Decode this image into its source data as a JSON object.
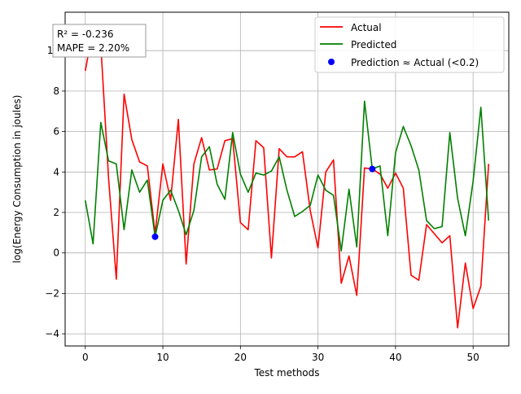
{
  "chart_data": {
    "type": "line",
    "xlabel": "Test methods",
    "ylabel": "log(Energy Consumption in joules)",
    "xlim": [
      -2.6,
      54.6
    ],
    "ylim": [
      -4.6,
      11.9
    ],
    "x_ticks": [
      0,
      10,
      20,
      30,
      40,
      50
    ],
    "y_ticks": [
      -4,
      -2,
      0,
      2,
      4,
      6,
      8,
      10
    ],
    "grid": true,
    "legend_position": "top-right",
    "annotation": {
      "line1": "R² = -0.236",
      "line2": "MAPE = 2.20%",
      "position": "top-left"
    },
    "series": [
      {
        "name": "Actual",
        "color": "#ff0000",
        "kind": "line",
        "x": [
          0,
          1,
          2,
          3,
          4,
          5,
          6,
          7,
          8,
          9,
          10,
          11,
          12,
          13,
          14,
          15,
          16,
          17,
          18,
          19,
          20,
          21,
          22,
          23,
          24,
          25,
          26,
          27,
          28,
          29,
          30,
          31,
          32,
          33,
          34,
          35,
          36,
          37,
          38,
          39,
          40,
          41,
          42,
          43,
          44,
          45,
          46,
          47,
          48,
          49,
          50,
          51,
          52
        ],
        "y": [
          9.0,
          11.1,
          10.3,
          3.7,
          -1.3,
          7.85,
          5.6,
          4.5,
          4.3,
          0.95,
          4.4,
          2.6,
          6.6,
          -0.55,
          4.4,
          5.7,
          4.1,
          4.15,
          5.55,
          5.65,
          1.5,
          1.15,
          5.55,
          5.2,
          -0.25,
          5.15,
          4.75,
          4.75,
          5.0,
          2.1,
          0.25,
          4.0,
          4.6,
          -1.5,
          -0.15,
          -2.1,
          4.2,
          4.15,
          3.9,
          3.2,
          3.95,
          3.2,
          -1.1,
          -1.35,
          1.4,
          0.95,
          0.5,
          0.85,
          -3.7,
          -0.5,
          -2.75,
          -1.65,
          4.4
        ]
      },
      {
        "name": "Predicted",
        "color": "#008000",
        "kind": "line",
        "x": [
          0,
          1,
          2,
          3,
          4,
          5,
          6,
          7,
          8,
          9,
          10,
          11,
          12,
          13,
          14,
          15,
          16,
          17,
          18,
          19,
          20,
          21,
          22,
          23,
          24,
          25,
          26,
          27,
          28,
          29,
          30,
          31,
          32,
          33,
          34,
          35,
          36,
          37,
          38,
          39,
          40,
          41,
          42,
          43,
          44,
          45,
          46,
          47,
          48,
          49,
          50,
          51,
          52
        ],
        "y": [
          2.6,
          0.45,
          6.45,
          4.55,
          4.4,
          1.15,
          4.1,
          3.0,
          3.6,
          0.8,
          2.6,
          3.1,
          2.1,
          0.9,
          2.1,
          4.75,
          5.25,
          3.4,
          2.65,
          5.95,
          3.9,
          3.0,
          3.95,
          3.85,
          4.05,
          4.75,
          3.1,
          1.8,
          2.05,
          2.35,
          3.85,
          3.1,
          2.85,
          0.1,
          3.15,
          0.3,
          7.5,
          4.15,
          4.3,
          0.85,
          4.95,
          6.25,
          5.3,
          4.1,
          1.6,
          1.2,
          1.3,
          5.95,
          2.7,
          0.85,
          3.55,
          7.2,
          1.6
        ]
      },
      {
        "name": "Prediction ≈ Actual (<0.2)",
        "color": "#0000ff",
        "kind": "scatter",
        "x": [
          9,
          37
        ],
        "y": [
          0.8,
          4.15
        ]
      }
    ]
  }
}
